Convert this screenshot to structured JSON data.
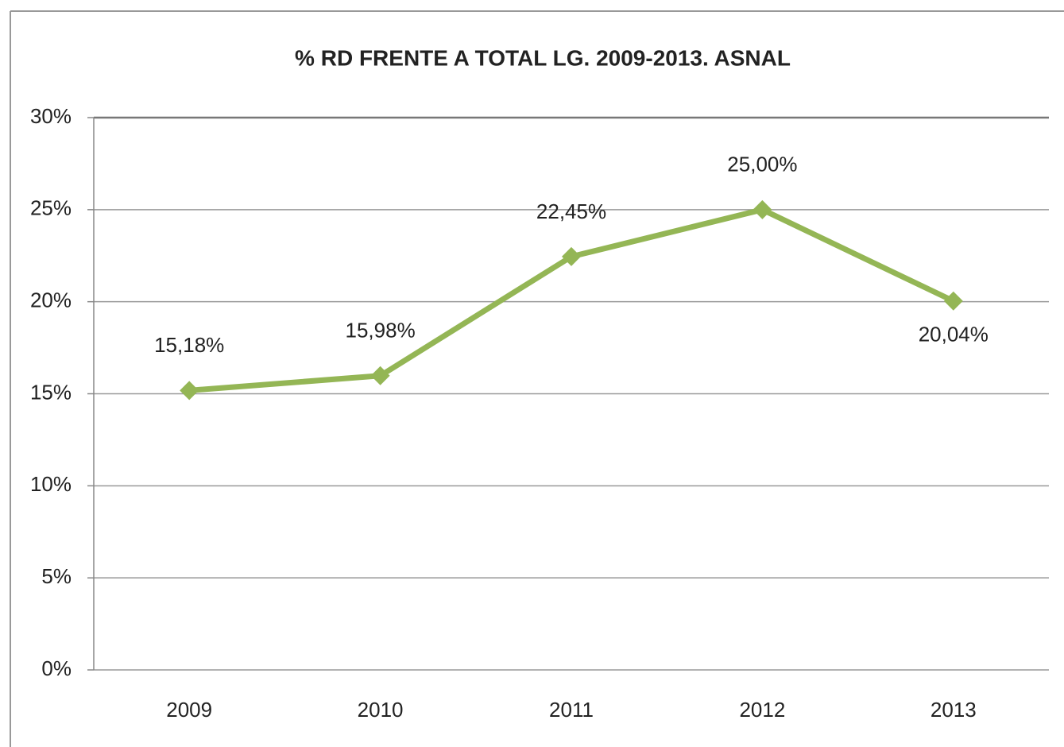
{
  "chart_data": {
    "type": "line",
    "title": "% RD FRENTE A TOTAL LG. 2009-2013. ASNAL",
    "categories": [
      "2009",
      "2010",
      "2011",
      "2012",
      "2013"
    ],
    "series": [
      {
        "name": null,
        "color": "#94b655",
        "values": [
          15.18,
          15.98,
          22.45,
          25.0,
          20.04
        ],
        "value_labels": [
          "15,18%",
          "15,98%",
          "22,45%",
          "25,00%",
          "20,04%"
        ]
      }
    ],
    "ylim": [
      0,
      30
    ],
    "yticks": [
      {
        "value": 0,
        "label": "0%"
      },
      {
        "value": 5,
        "label": "5%"
      },
      {
        "value": 10,
        "label": "10%"
      },
      {
        "value": 15,
        "label": "15%"
      },
      {
        "value": 20,
        "label": "20%"
      },
      {
        "value": 25,
        "label": "25%"
      },
      {
        "value": 30,
        "label": "30%"
      }
    ],
    "grid": true
  }
}
